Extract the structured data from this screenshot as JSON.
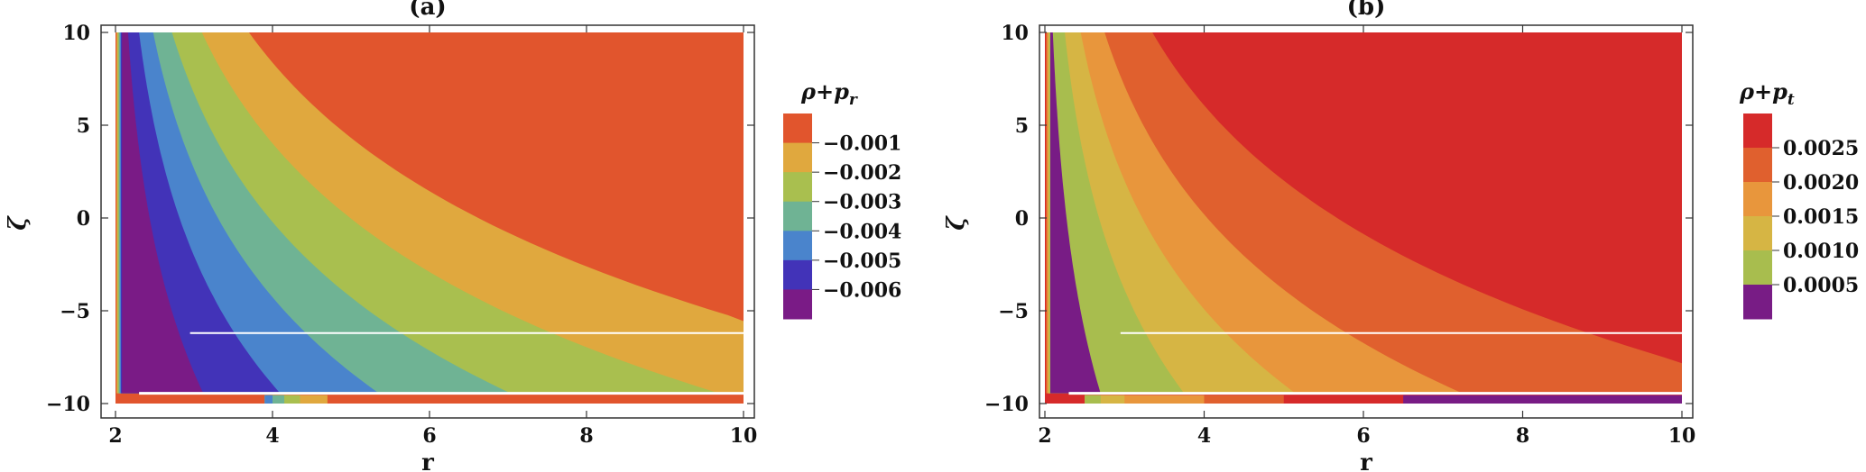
{
  "chart_data": [
    {
      "type": "contour",
      "panel_label": "(a)",
      "xlabel": "r",
      "ylabel": "ζ",
      "xlim": [
        2,
        10
      ],
      "ylim": [
        -10,
        10
      ],
      "x_ticks": [
        "2",
        "4",
        "6",
        "8",
        "10"
      ],
      "y_ticks": [
        "10",
        "5",
        "0",
        "−5",
        "−10"
      ],
      "legend_title": "ρ+p",
      "legend_title_sub": "r",
      "legend_labels": [
        "−0.001",
        "−0.002",
        "−0.003",
        "−0.004",
        "−0.005",
        "−0.006"
      ],
      "band_colors": [
        "#e1552d",
        "#e0a83e",
        "#a9bf4f",
        "#6fb394",
        "#4a84cc",
        "#4233b8",
        "#7a1b86"
      ],
      "contour_offsets": [
        1.7,
        1.1,
        0.72,
        0.48,
        0.3,
        0.16
      ]
    },
    {
      "type": "contour",
      "panel_label": "(b)",
      "xlabel": "r",
      "ylabel": "ζ",
      "xlim": [
        2,
        10
      ],
      "ylim": [
        -10,
        10
      ],
      "x_ticks": [
        "2",
        "4",
        "6",
        "8",
        "10"
      ],
      "y_ticks": [
        "10",
        "5",
        "0",
        "−5",
        "−10"
      ],
      "legend_title": "ρ+p",
      "legend_title_sub": "t",
      "legend_labels": [
        "0.0025",
        "0.0020",
        "0.0015",
        "0.0010",
        "0.0005"
      ],
      "band_colors": [
        "#d62a2a",
        "#e0602e",
        "#e8963c",
        "#d6b544",
        "#a8bd4e",
        "#781c85"
      ],
      "contour_offsets": [
        1.35,
        0.75,
        0.45,
        0.25,
        0.1
      ]
    }
  ]
}
